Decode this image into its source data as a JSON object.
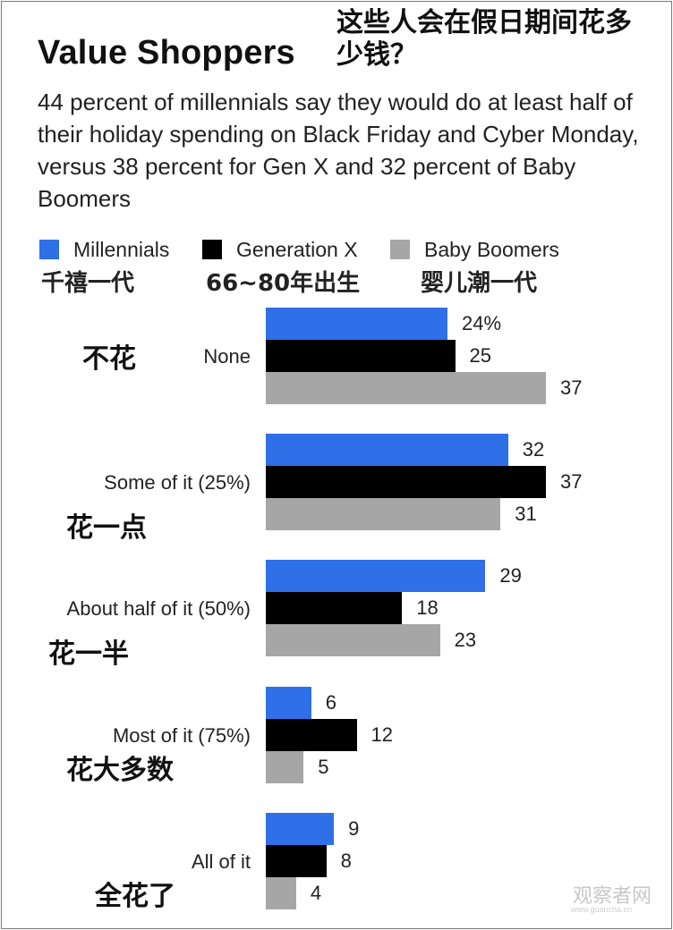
{
  "title": "Value Shoppers",
  "cn_title": "这些人会在假日期间花多少钱？",
  "subtitle": "44 percent of millennials say they would do at least half of their holiday spending on Black Friday and Cyber Monday, versus 38 percent for Gen X and 32 percent of Baby Boomers",
  "legend": [
    {
      "label": "Millennials",
      "cn": "千禧一代",
      "color": "#2f6fe8"
    },
    {
      "label": "Generation X",
      "cn": "66~80年出生",
      "color": "#000000"
    },
    {
      "label": "Baby Boomers",
      "cn": "婴儿潮一代",
      "color": "#a6a6a6"
    }
  ],
  "chart_data": {
    "type": "bar",
    "orientation": "horizontal",
    "title": "Value Shoppers",
    "categories": [
      "None",
      "Some of it (25%)",
      "About half of it (50%)",
      "Most of it (75%)",
      "All of it"
    ],
    "categories_cn": [
      "不花",
      "花一点",
      "花一半",
      "花大多数",
      "全花了"
    ],
    "series": [
      {
        "name": "Millennials",
        "color": "#2f6fe8",
        "values": [
          24,
          32,
          29,
          6,
          9
        ]
      },
      {
        "name": "Generation X",
        "color": "#000000",
        "values": [
          25,
          37,
          18,
          12,
          8
        ]
      },
      {
        "name": "Baby Boomers",
        "color": "#a6a6a6",
        "values": [
          37,
          31,
          23,
          5,
          4
        ]
      }
    ],
    "value_labels": [
      [
        "24%",
        "25",
        "37"
      ],
      [
        "32",
        "37",
        "31"
      ],
      [
        "29",
        "18",
        "23"
      ],
      [
        "6",
        "12",
        "5"
      ],
      [
        "9",
        "8",
        "4"
      ]
    ],
    "xlim": [
      0,
      37
    ],
    "grid": false,
    "legend_position": "top"
  },
  "watermark": "观察者网",
  "watermark_sub": "www.guancha.cn"
}
